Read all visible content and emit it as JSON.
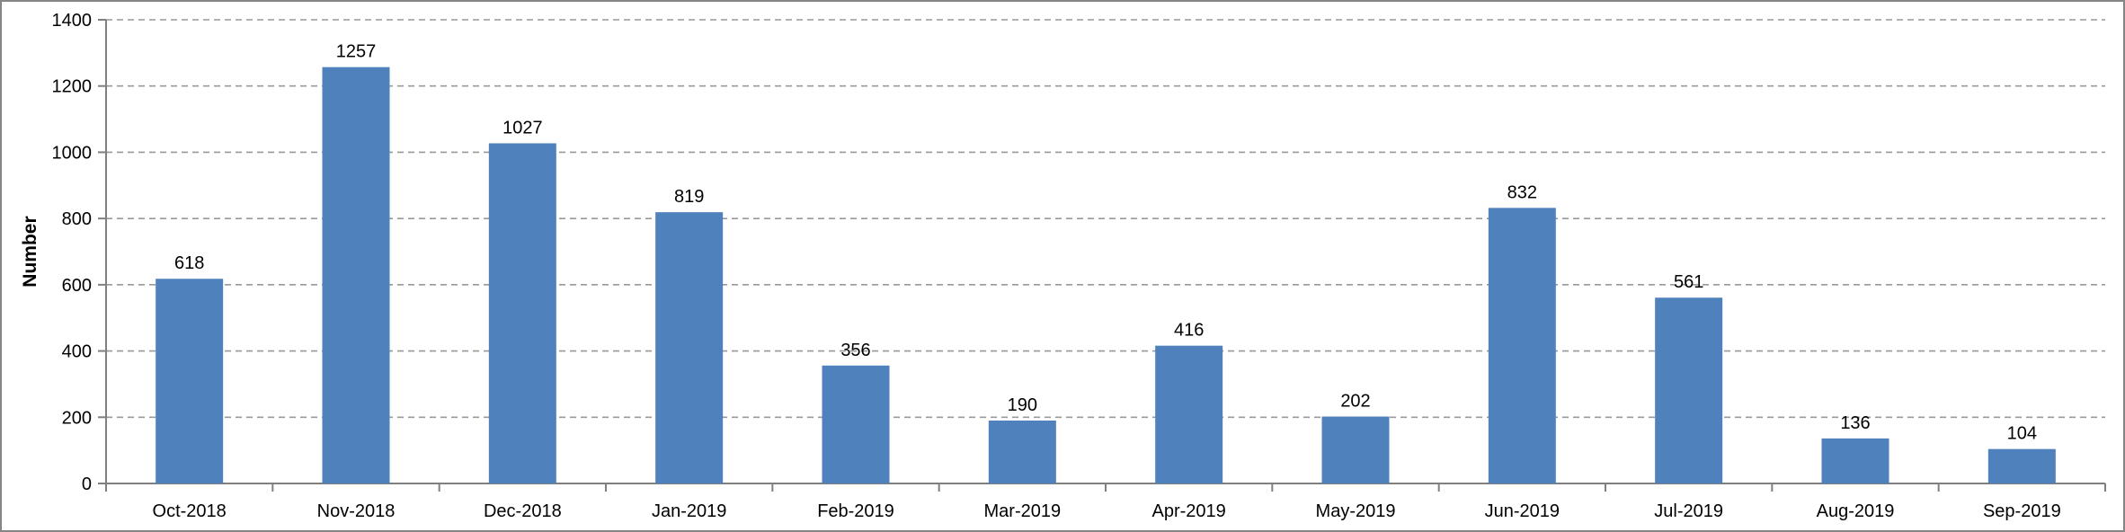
{
  "chart_data": {
    "type": "bar",
    "title": "",
    "categories": [
      "Oct-2018",
      "Nov-2018",
      "Dec-2018",
      "Jan-2019",
      "Feb-2019",
      "Mar-2019",
      "Apr-2019",
      "May-2019",
      "Jun-2019",
      "Jul-2019",
      "Aug-2019",
      "Sep-2019"
    ],
    "values": [
      618,
      1257,
      1027,
      819,
      356,
      190,
      416,
      202,
      832,
      561,
      136,
      104
    ],
    "xlabel": "",
    "ylabel": "Number",
    "ylim": [
      0,
      1400
    ],
    "yticks": [
      0,
      200,
      400,
      600,
      800,
      1000,
      1200,
      1400
    ],
    "grid": "horizontal-dashed",
    "legend": null,
    "colors": {
      "bar_fill": "#4F81BD",
      "axis": "#808080",
      "gridline": "#999999",
      "text": "#000000",
      "background": "#ffffff",
      "frame_border": "#858585"
    }
  }
}
